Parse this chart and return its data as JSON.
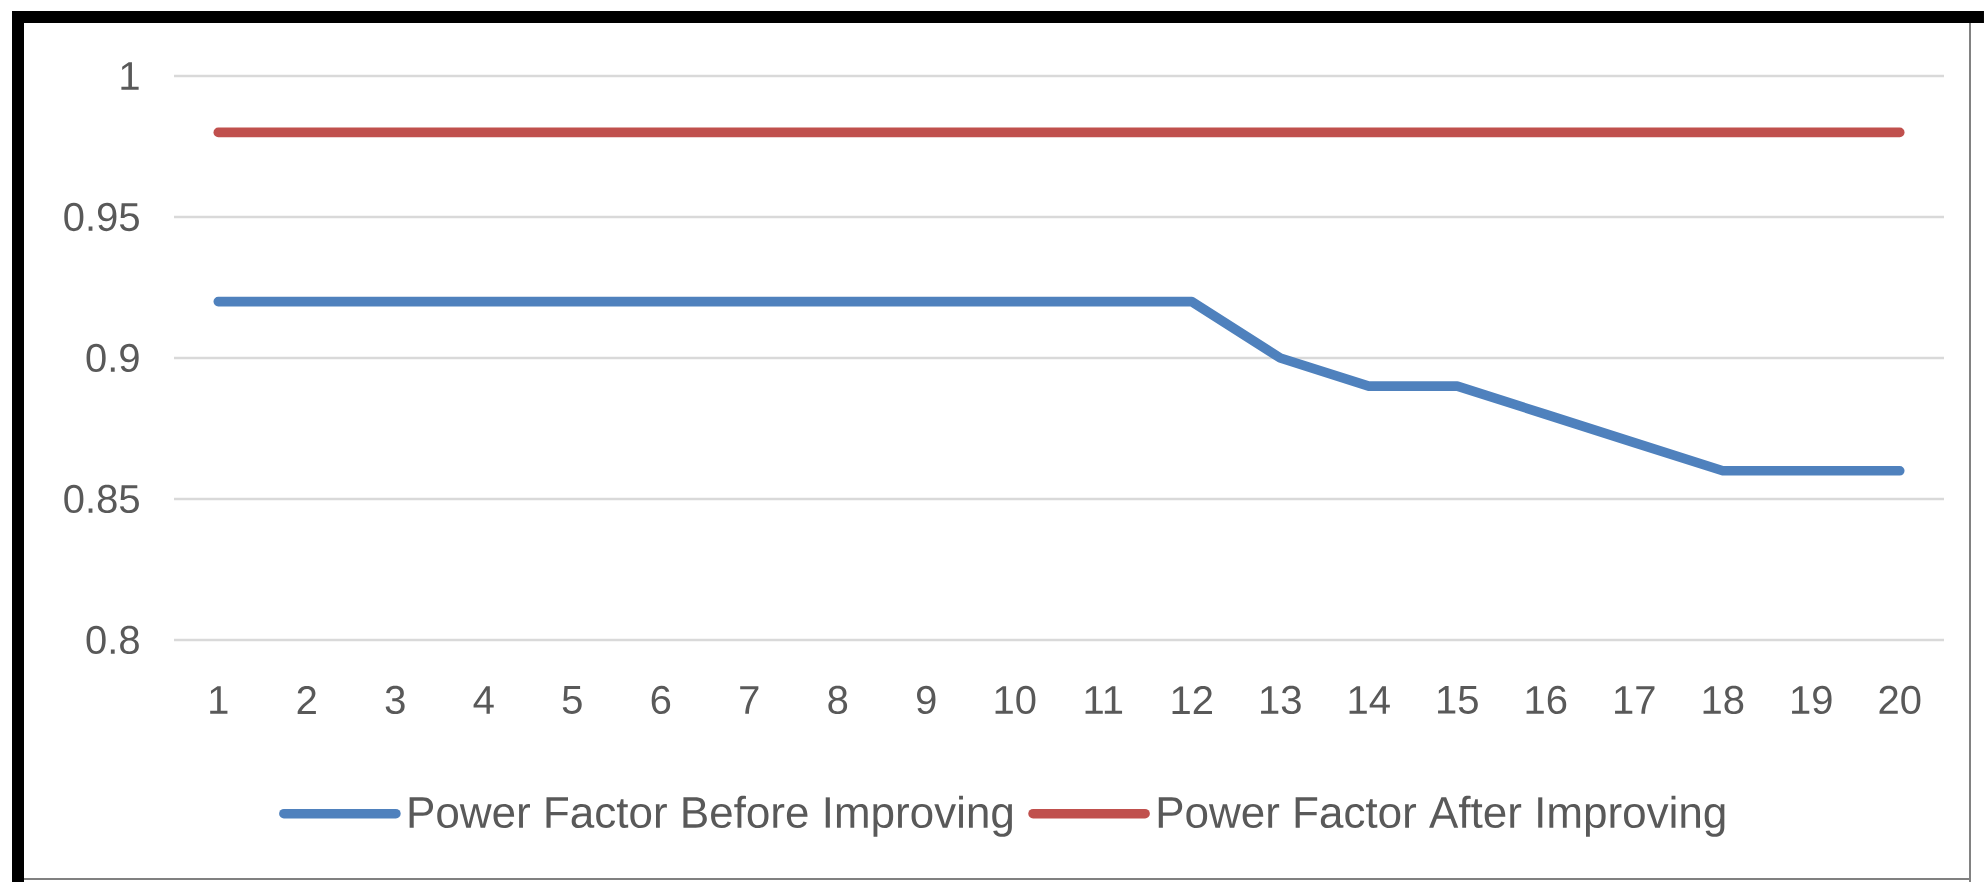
{
  "chart_data": {
    "type": "line",
    "categories": [
      "1",
      "2",
      "3",
      "4",
      "5",
      "6",
      "7",
      "8",
      "9",
      "10",
      "11",
      "12",
      "13",
      "14",
      "15",
      "16",
      "17",
      "18",
      "19",
      "20"
    ],
    "series": [
      {
        "name": "Power Factor Before Improving",
        "color": "#4f81bd",
        "values": [
          0.92,
          0.92,
          0.92,
          0.92,
          0.92,
          0.92,
          0.92,
          0.92,
          0.92,
          0.92,
          0.92,
          0.92,
          0.9,
          0.89,
          0.89,
          0.88,
          0.87,
          0.86,
          0.86,
          0.86
        ]
      },
      {
        "name": "Power Factor After Improving",
        "color": "#c0504d",
        "values": [
          0.98,
          0.98,
          0.98,
          0.98,
          0.98,
          0.98,
          0.98,
          0.98,
          0.98,
          0.98,
          0.98,
          0.98,
          0.98,
          0.98,
          0.98,
          0.98,
          0.98,
          0.98,
          0.98,
          0.98
        ]
      }
    ],
    "ylim": [
      0.8,
      1
    ],
    "yticks": [
      0.8,
      0.85,
      0.9,
      0.95,
      1
    ],
    "grid": "y",
    "legend": "bottom",
    "line_style": "solid"
  }
}
